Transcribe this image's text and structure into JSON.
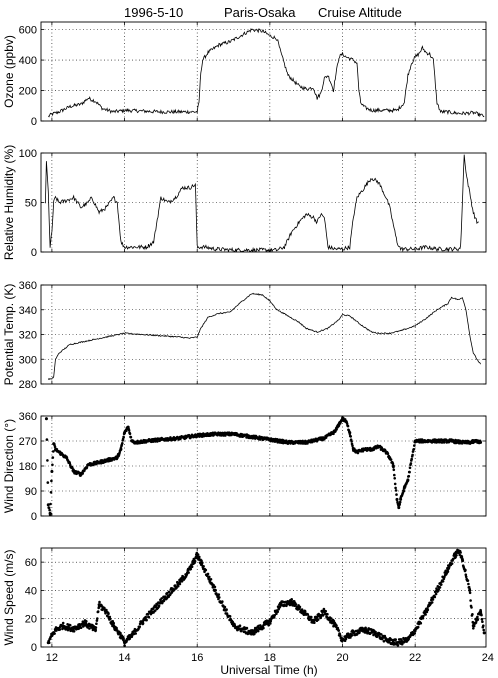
{
  "figure": {
    "title_parts": [
      "1996-5-10",
      "Paris-Osaka",
      "Cruise Altitude"
    ],
    "xlabel": "Universal Time (h)",
    "xlim": [
      11.7,
      23.95
    ],
    "xticks": [
      12,
      14,
      16,
      18,
      20,
      22,
      24
    ]
  },
  "chart_data": [
    {
      "type": "line",
      "ylabel": "Ozone (ppbv)",
      "ylim": [
        0,
        650
      ],
      "yticks": [
        0,
        200,
        400,
        600
      ],
      "grid": true,
      "x": [
        11.9,
        12.0,
        12.2,
        12.5,
        12.8,
        13.0,
        13.2,
        13.4,
        13.7,
        14.0,
        14.5,
        15.0,
        15.3,
        15.6,
        15.8,
        16.0,
        16.05,
        16.1,
        16.15,
        16.3,
        16.6,
        16.9,
        17.2,
        17.5,
        17.8,
        18.0,
        18.2,
        18.3,
        18.5,
        18.8,
        19.0,
        19.2,
        19.3,
        19.4,
        19.5,
        19.6,
        19.7,
        19.75,
        19.8,
        19.9,
        20.0,
        20.1,
        20.2,
        20.3,
        20.4,
        20.45,
        20.5,
        20.6,
        20.8,
        21.0,
        21.2,
        21.5,
        21.7,
        21.8,
        21.9,
        22.0,
        22.1,
        22.2,
        22.3,
        22.4,
        22.5,
        22.6,
        22.7,
        22.8,
        22.9,
        23.0,
        23.2,
        23.4,
        23.6,
        23.8,
        23.9
      ],
      "values": [
        30,
        45,
        60,
        95,
        110,
        150,
        130,
        80,
        60,
        70,
        65,
        60,
        60,
        60,
        60,
        60,
        120,
        320,
        400,
        450,
        500,
        520,
        560,
        600,
        590,
        560,
        540,
        450,
        300,
        230,
        210,
        220,
        150,
        180,
        280,
        300,
        240,
        200,
        280,
        420,
        440,
        420,
        410,
        400,
        380,
        200,
        120,
        90,
        70,
        70,
        70,
        70,
        120,
        300,
        380,
        420,
        440,
        480,
        450,
        440,
        400,
        120,
        60,
        60,
        60,
        55,
        50,
        50,
        55,
        40,
        30
      ]
    },
    {
      "type": "line",
      "ylabel": "Relative Humidity (%)",
      "ylim": [
        0,
        100
      ],
      "yticks": [
        0,
        50,
        100
      ],
      "grid": true,
      "x": [
        11.82,
        11.85,
        11.9,
        11.95,
        12.0,
        12.05,
        12.1,
        12.2,
        12.4,
        12.6,
        12.8,
        13.0,
        13.1,
        13.3,
        13.5,
        13.7,
        13.8,
        13.9,
        14.0,
        14.3,
        14.6,
        14.8,
        15.0,
        15.2,
        15.4,
        15.6,
        15.8,
        15.95,
        16.0,
        16.05,
        16.2,
        16.5,
        17.0,
        17.5,
        18.0,
        18.2,
        18.4,
        18.6,
        18.8,
        19.0,
        19.2,
        19.3,
        19.4,
        19.5,
        19.6,
        19.8,
        20.0,
        20.2,
        20.3,
        20.4,
        20.6,
        20.8,
        21.0,
        21.2,
        21.3,
        21.5,
        21.6,
        21.7,
        21.8,
        21.9,
        22.0,
        22.3,
        22.6,
        23.0,
        23.2,
        23.25,
        23.3,
        23.35,
        23.4,
        23.5,
        23.6,
        23.7,
        23.75
      ],
      "values": [
        50,
        90,
        60,
        5,
        20,
        50,
        55,
        50,
        52,
        55,
        45,
        50,
        55,
        40,
        45,
        55,
        50,
        10,
        5,
        5,
        5,
        10,
        55,
        50,
        55,
        65,
        65,
        68,
        5,
        5,
        5,
        3,
        2,
        2,
        2,
        2,
        5,
        20,
        30,
        38,
        35,
        30,
        38,
        35,
        5,
        3,
        3,
        5,
        35,
        55,
        65,
        75,
        70,
        55,
        45,
        10,
        3,
        3,
        3,
        3,
        3,
        5,
        3,
        3,
        3,
        5,
        50,
        100,
        80,
        60,
        40,
        30,
        30
      ]
    },
    {
      "type": "line",
      "ylabel": "Potential Temp. (K)",
      "ylim": [
        280,
        360
      ],
      "yticks": [
        280,
        300,
        320,
        340,
        360
      ],
      "grid": true,
      "x": [
        11.9,
        12.0,
        12.05,
        12.1,
        12.2,
        12.5,
        13.0,
        13.5,
        14.0,
        14.5,
        15.0,
        15.5,
        15.8,
        16.0,
        16.1,
        16.3,
        16.6,
        16.9,
        17.2,
        17.5,
        17.8,
        18.0,
        18.2,
        18.5,
        18.8,
        19.0,
        19.3,
        19.6,
        19.9,
        20.0,
        20.2,
        20.5,
        20.8,
        21.0,
        21.3,
        21.6,
        22.0,
        22.3,
        22.6,
        22.9,
        23.0,
        23.2,
        23.3,
        23.4,
        23.5,
        23.6,
        23.7,
        23.8
      ],
      "values": [
        284,
        284,
        286,
        300,
        305,
        312,
        315,
        318,
        321,
        320,
        319,
        318,
        317,
        318,
        325,
        334,
        337,
        338,
        346,
        353,
        352,
        347,
        340,
        335,
        330,
        325,
        322,
        325,
        332,
        336,
        335,
        328,
        322,
        321,
        321,
        323,
        327,
        333,
        340,
        345,
        350,
        348,
        350,
        340,
        320,
        305,
        300,
        296
      ]
    },
    {
      "type": "scatter",
      "ylabel": "Wind Direction (°)",
      "ylim": [
        0,
        360
      ],
      "yticks": [
        0,
        90,
        180,
        270,
        360
      ],
      "grid": true,
      "x": [
        11.85,
        11.9,
        11.95,
        12.0,
        12.05,
        12.1,
        12.2,
        12.4,
        12.6,
        12.8,
        13.0,
        13.2,
        13.5,
        13.8,
        13.9,
        14.0,
        14.1,
        14.2,
        14.3,
        14.6,
        15.0,
        15.5,
        16.0,
        16.5,
        17.0,
        17.5,
        18.0,
        18.5,
        19.0,
        19.5,
        19.8,
        19.9,
        20.0,
        20.1,
        20.2,
        20.3,
        20.4,
        20.6,
        20.8,
        21.0,
        21.2,
        21.3,
        21.4,
        21.5,
        21.55,
        21.6,
        21.7,
        21.8,
        22.0,
        22.5,
        23.0,
        23.3,
        23.5,
        23.7,
        23.8
      ],
      "values": [
        350,
        40,
        10,
        160,
        260,
        240,
        230,
        210,
        160,
        150,
        185,
        190,
        200,
        210,
        240,
        300,
        320,
        270,
        265,
        270,
        275,
        280,
        290,
        295,
        295,
        285,
        275,
        265,
        265,
        280,
        305,
        330,
        350,
        340,
        300,
        240,
        230,
        240,
        240,
        250,
        230,
        210,
        180,
        60,
        30,
        60,
        100,
        130,
        270,
        270,
        270,
        265,
        265,
        270,
        265
      ]
    },
    {
      "type": "scatter",
      "ylabel": "Wind Speed (m/s)",
      "ylim": [
        0,
        70
      ],
      "yticks": [
        0,
        20,
        40,
        60
      ],
      "grid": true,
      "x": [
        11.9,
        12.0,
        12.1,
        12.3,
        12.6,
        12.9,
        13.2,
        13.3,
        13.5,
        13.7,
        13.9,
        14.0,
        14.2,
        14.5,
        15.0,
        15.5,
        15.8,
        16.0,
        16.2,
        16.5,
        17.0,
        17.5,
        18.0,
        18.3,
        18.6,
        18.9,
        19.2,
        19.5,
        19.8,
        20.0,
        20.3,
        20.6,
        20.9,
        21.2,
        21.5,
        21.8,
        22.0,
        22.3,
        22.6,
        22.9,
        23.1,
        23.2,
        23.3,
        23.5,
        23.6,
        23.7,
        23.8,
        23.9
      ],
      "values": [
        3,
        8,
        12,
        15,
        13,
        17,
        12,
        30,
        25,
        15,
        8,
        3,
        8,
        18,
        32,
        45,
        55,
        65,
        55,
        40,
        15,
        10,
        18,
        30,
        32,
        25,
        18,
        25,
        15,
        5,
        10,
        12,
        10,
        5,
        3,
        5,
        12,
        25,
        40,
        55,
        65,
        68,
        62,
        40,
        15,
        20,
        25,
        10
      ]
    }
  ]
}
